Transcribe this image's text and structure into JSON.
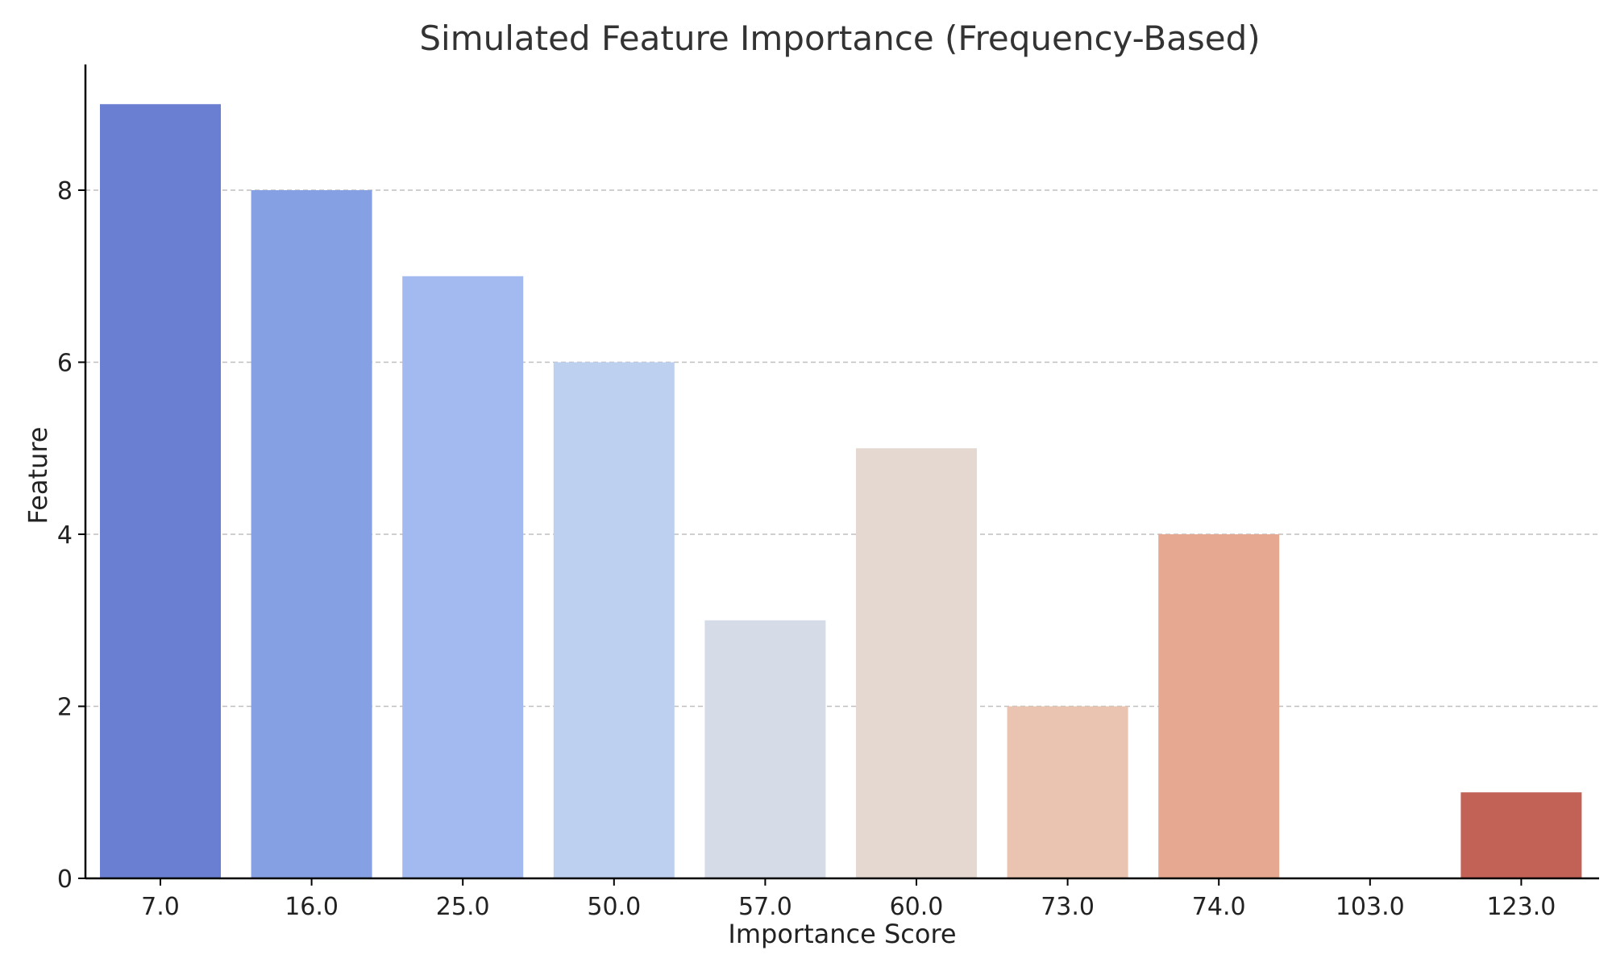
{
  "chart_data": {
    "type": "bar",
    "title": "Simulated Feature Importance (Frequency-Based)",
    "xlabel": "Importance Score",
    "ylabel": "Feature",
    "categories": [
      "7.0",
      "16.0",
      "25.0",
      "50.0",
      "57.0",
      "60.0",
      "73.0",
      "74.0",
      "103.0",
      "123.0"
    ],
    "values": [
      9,
      8,
      7,
      6,
      3,
      5,
      2,
      4,
      0,
      1
    ],
    "bar_colors": [
      "#6a7fd2",
      "#86a0e4",
      "#a3baf1",
      "#bed0f0",
      "#d5dce7",
      "#e4d8d1",
      "#eac4b0",
      "#e6a891",
      "#e6a891",
      "#c26156"
    ],
    "ylim": [
      0,
      9.45
    ],
    "yticks": [
      0,
      2,
      4,
      6,
      8
    ],
    "grid": "y-dashed",
    "legend": "none"
  }
}
